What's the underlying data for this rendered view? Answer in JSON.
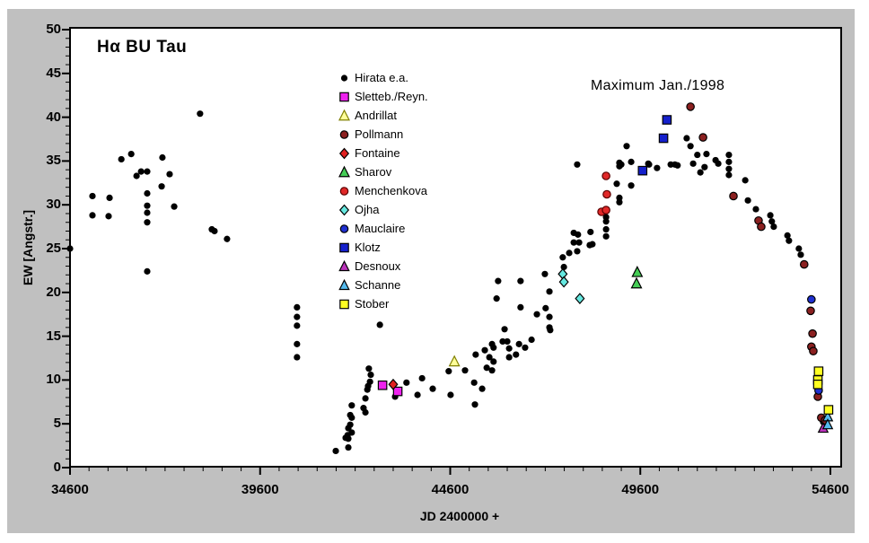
{
  "page": {
    "outer_background": "#ffffff",
    "panel_background": "#c0c0c0",
    "plot_background": "#ffffff",
    "axis_color": "#000000"
  },
  "chart_data": {
    "type": "scatter",
    "title": "Hα BU Tau",
    "annotation": "Maximum Jan./1998",
    "xlabel": "JD 2400000 +",
    "ylabel": "EW [Angstr.]",
    "xlim": [
      34600,
      54600
    ],
    "ylim": [
      0,
      50
    ],
    "grid": false,
    "legend_position": "inside upper-middle-left",
    "x_major_ticks": [
      34600,
      39600,
      44600,
      49600,
      54600
    ],
    "x_minor_step": 500,
    "y_major_ticks": [
      0,
      5,
      10,
      15,
      20,
      25,
      30,
      35,
      40,
      45,
      50
    ],
    "y_minor_step": 1,
    "series": [
      {
        "name": "Hirata e.a.",
        "marker": "circle",
        "color": "#000000",
        "border": null,
        "size": 7.2,
        "points": [
          [
            34600,
            25.0
          ],
          [
            35190,
            31.0
          ],
          [
            35190,
            28.8
          ],
          [
            35615,
            28.7
          ],
          [
            35640,
            30.8
          ],
          [
            35950,
            35.2
          ],
          [
            36210,
            35.8
          ],
          [
            36350,
            33.3
          ],
          [
            36470,
            33.8
          ],
          [
            36630,
            33.8
          ],
          [
            36630,
            31.3
          ],
          [
            36630,
            29.9
          ],
          [
            36630,
            29.1
          ],
          [
            36630,
            28.0
          ],
          [
            36630,
            22.4
          ],
          [
            37010,
            32.1
          ],
          [
            37030,
            35.4
          ],
          [
            37220,
            33.5
          ],
          [
            37340,
            29.8
          ],
          [
            38020,
            40.4
          ],
          [
            38330,
            27.2
          ],
          [
            38400,
            27.0
          ],
          [
            38730,
            26.1
          ],
          [
            40570,
            18.3
          ],
          [
            40570,
            17.2
          ],
          [
            40570,
            16.2
          ],
          [
            40570,
            14.1
          ],
          [
            40570,
            12.6
          ],
          [
            41590,
            1.9
          ],
          [
            41850,
            3.4
          ],
          [
            41900,
            3.7
          ],
          [
            41920,
            2.3
          ],
          [
            41920,
            3.3
          ],
          [
            41920,
            4.5
          ],
          [
            41970,
            4.9
          ],
          [
            41970,
            6.0
          ],
          [
            42010,
            4.0
          ],
          [
            42010,
            5.7
          ],
          [
            42010,
            7.1
          ],
          [
            42320,
            6.8
          ],
          [
            42370,
            6.3
          ],
          [
            42370,
            7.9
          ],
          [
            42420,
            8.9
          ],
          [
            42440,
            9.3
          ],
          [
            42490,
            9.8
          ],
          [
            42510,
            10.6
          ],
          [
            42460,
            11.3
          ],
          [
            42750,
            16.3
          ],
          [
            43150,
            8.1
          ],
          [
            43450,
            9.7
          ],
          [
            43740,
            8.3
          ],
          [
            43860,
            10.2
          ],
          [
            44140,
            9.0
          ],
          [
            44560,
            11.0
          ],
          [
            44610,
            8.3
          ],
          [
            44990,
            11.1
          ],
          [
            45230,
            9.7
          ],
          [
            45250,
            7.2
          ],
          [
            45270,
            12.9
          ],
          [
            45440,
            9.0
          ],
          [
            45510,
            13.4
          ],
          [
            45560,
            11.4
          ],
          [
            45630,
            12.6
          ],
          [
            45700,
            14.1
          ],
          [
            45700,
            11.1
          ],
          [
            45740,
            13.7
          ],
          [
            45740,
            12.1
          ],
          [
            45820,
            19.3
          ],
          [
            45860,
            21.3
          ],
          [
            45980,
            14.4
          ],
          [
            46030,
            15.8
          ],
          [
            46100,
            14.4
          ],
          [
            46150,
            13.6
          ],
          [
            46150,
            12.6
          ],
          [
            46330,
            12.9
          ],
          [
            46410,
            14.1
          ],
          [
            46450,
            21.3
          ],
          [
            46450,
            18.3
          ],
          [
            46570,
            13.7
          ],
          [
            46740,
            14.6
          ],
          [
            46880,
            17.5
          ],
          [
            47090,
            22.1
          ],
          [
            47110,
            18.2
          ],
          [
            47210,
            20.1
          ],
          [
            47210,
            17.2
          ],
          [
            47210,
            16.0
          ],
          [
            47230,
            15.7
          ],
          [
            47560,
            24.0
          ],
          [
            47590,
            22.9
          ],
          [
            47730,
            24.5
          ],
          [
            47850,
            26.8
          ],
          [
            47850,
            25.7
          ],
          [
            47940,
            24.7
          ],
          [
            47940,
            34.6
          ],
          [
            47960,
            26.6
          ],
          [
            47990,
            25.7
          ],
          [
            48270,
            25.4
          ],
          [
            48290,
            26.9
          ],
          [
            48340,
            25.5
          ],
          [
            48700,
            28.6
          ],
          [
            48700,
            28.1
          ],
          [
            48700,
            27.2
          ],
          [
            48700,
            26.4
          ],
          [
            48980,
            32.4
          ],
          [
            49050,
            34.8
          ],
          [
            49050,
            34.4
          ],
          [
            49050,
            30.8
          ],
          [
            49050,
            30.3
          ],
          [
            49100,
            34.6
          ],
          [
            49240,
            36.7
          ],
          [
            49360,
            34.9
          ],
          [
            49360,
            32.2
          ],
          [
            49810,
            34.7
          ],
          [
            49830,
            34.6
          ],
          [
            50040,
            34.2
          ],
          [
            50400,
            34.6
          ],
          [
            50510,
            34.6
          ],
          [
            50580,
            34.5
          ],
          [
            50820,
            37.6
          ],
          [
            50920,
            36.7
          ],
          [
            50990,
            34.7
          ],
          [
            51100,
            35.7
          ],
          [
            51180,
            33.7
          ],
          [
            51290,
            34.3
          ],
          [
            51340,
            35.8
          ],
          [
            51580,
            35.1
          ],
          [
            51650,
            34.7
          ],
          [
            51930,
            35.7
          ],
          [
            51930,
            34.9
          ],
          [
            51930,
            34.1
          ],
          [
            51930,
            33.4
          ],
          [
            52360,
            32.8
          ],
          [
            52430,
            30.5
          ],
          [
            52640,
            29.5
          ],
          [
            53020,
            28.8
          ],
          [
            53060,
            28.1
          ],
          [
            53110,
            27.5
          ],
          [
            53470,
            26.5
          ],
          [
            53510,
            25.9
          ],
          [
            53770,
            25.0
          ],
          [
            53820,
            24.3
          ],
          [
            54410,
            5.2
          ]
        ]
      },
      {
        "name": "Sletteb./Reyn.",
        "marker": "square",
        "color": "#ee22ee",
        "border": "#000000",
        "size": 9.4,
        "points": [
          [
            42820,
            9.4
          ],
          [
            43220,
            8.7
          ]
        ]
      },
      {
        "name": "Andrillat",
        "marker": "triangle",
        "color": "#ffff99",
        "border": "#808000",
        "size": 11,
        "points": [
          [
            44710,
            12.1
          ]
        ]
      },
      {
        "name": "Pollmann",
        "marker": "circle",
        "color": "#8b2020",
        "border": "#000000",
        "size": 8.4,
        "points": [
          [
            50920,
            41.2
          ],
          [
            51250,
            37.7
          ],
          [
            52050,
            31.0
          ],
          [
            52710,
            28.2
          ],
          [
            52780,
            27.5
          ],
          [
            53910,
            23.2
          ],
          [
            54080,
            17.9
          ],
          [
            54130,
            15.3
          ],
          [
            54100,
            13.8
          ],
          [
            54150,
            13.3
          ],
          [
            54270,
            8.1
          ],
          [
            54360,
            5.7
          ],
          [
            54460,
            5.4
          ]
        ]
      },
      {
        "name": "Fontaine",
        "marker": "diamond",
        "color": "#e02020",
        "border": "#000000",
        "size": 9.5,
        "points": [
          [
            43100,
            9.5
          ]
        ]
      },
      {
        "name": "Sharov",
        "marker": "triangle",
        "color": "#44cc55",
        "border": "#000000",
        "size": 11,
        "points": [
          [
            49520,
            22.3
          ],
          [
            49500,
            21.0
          ]
        ]
      },
      {
        "name": "Menchenkova",
        "marker": "circle",
        "color": "#e02828",
        "border": "#5a0000",
        "size": 8.4,
        "points": [
          [
            48700,
            33.3
          ],
          [
            48720,
            31.2
          ],
          [
            48580,
            29.2
          ],
          [
            48700,
            29.4
          ]
        ]
      },
      {
        "name": "Ojha",
        "marker": "diamond",
        "color": "#66e8e0",
        "border": "#000000",
        "size": 9.5,
        "points": [
          [
            47560,
            22.1
          ],
          [
            47590,
            21.2
          ],
          [
            48010,
            19.3
          ]
        ]
      },
      {
        "name": "Mauclaire",
        "marker": "circle",
        "color": "#2030d0",
        "border": "#000000",
        "size": 8.4,
        "points": [
          [
            54100,
            19.2
          ],
          [
            54290,
            8.8
          ]
        ]
      },
      {
        "name": "Klotz",
        "marker": "square",
        "color": "#1520cc",
        "border": "#000000",
        "size": 9.4,
        "points": [
          [
            50300,
            39.7
          ],
          [
            50210,
            37.6
          ],
          [
            49660,
            33.9
          ]
        ]
      },
      {
        "name": "Desnoux",
        "marker": "triangle",
        "color": "#bb33bb",
        "border": "#000000",
        "size": 10.5,
        "points": [
          [
            54410,
            4.5
          ]
        ]
      },
      {
        "name": "Schanne",
        "marker": "triangle",
        "color": "#55bbee",
        "border": "#000000",
        "size": 10.5,
        "points": [
          [
            54530,
            5.8
          ],
          [
            54530,
            4.9
          ]
        ]
      },
      {
        "name": "Stober",
        "marker": "square",
        "color": "#ffff22",
        "border": "#000000",
        "size": 9.4,
        "points": [
          [
            54290,
            11.0
          ],
          [
            54270,
            10.0
          ],
          [
            54270,
            9.5
          ],
          [
            54550,
            6.6
          ]
        ]
      }
    ]
  }
}
